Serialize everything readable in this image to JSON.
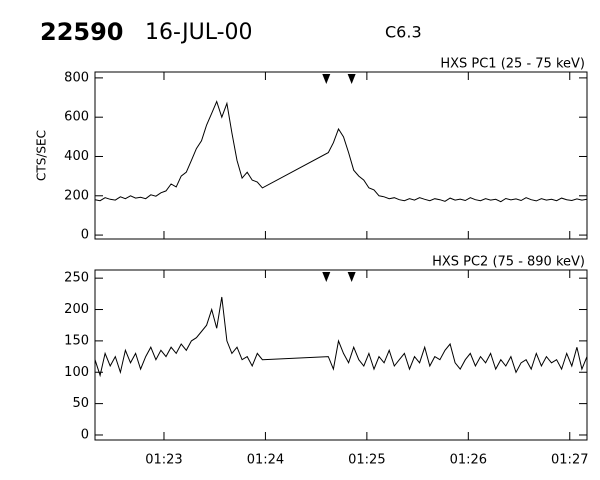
{
  "header": {
    "event": "22590",
    "date": "16-JUL-00",
    "class": "C6.3"
  },
  "chart_data": [
    {
      "type": "line",
      "title": "HXS PC1 (25 - 75 keV)",
      "y_label": "CTS/SEC",
      "color": "#000000",
      "x": [
        82.32,
        82.37,
        82.42,
        82.47,
        82.52,
        82.57,
        82.62,
        82.67,
        82.72,
        82.77,
        82.82,
        82.87,
        82.92,
        82.97,
        83.02,
        83.07,
        83.12,
        83.17,
        83.22,
        83.27,
        83.32,
        83.37,
        83.42,
        83.47,
        83.52,
        83.57,
        83.62,
        83.67,
        83.72,
        83.77,
        83.82,
        83.87,
        83.92,
        83.97,
        84.62,
        84.67,
        84.72,
        84.77,
        84.82,
        84.87,
        84.92,
        84.97,
        85.02,
        85.07,
        85.12,
        85.17,
        85.22,
        85.27,
        85.32,
        85.37,
        85.42,
        85.47,
        85.52,
        85.57,
        85.62,
        85.67,
        85.72,
        85.77,
        85.82,
        85.87,
        85.92,
        85.97,
        86.02,
        86.07,
        86.12,
        86.17,
        86.22,
        86.27,
        86.32,
        86.37,
        86.42,
        86.47,
        86.52,
        86.57,
        86.62,
        86.67,
        86.72,
        86.77,
        86.82,
        86.87,
        86.92,
        86.97,
        87.02,
        87.07,
        87.12,
        87.17
      ],
      "values": [
        180,
        175,
        190,
        182,
        178,
        195,
        185,
        200,
        188,
        192,
        185,
        205,
        198,
        215,
        225,
        260,
        245,
        300,
        320,
        380,
        440,
        480,
        560,
        620,
        680,
        600,
        670,
        520,
        380,
        290,
        320,
        280,
        270,
        240,
        420,
        470,
        540,
        500,
        420,
        330,
        300,
        280,
        240,
        230,
        200,
        195,
        185,
        190,
        180,
        175,
        185,
        178,
        190,
        182,
        175,
        185,
        180,
        172,
        188,
        178,
        183,
        176,
        190,
        180,
        175,
        185,
        178,
        182,
        170,
        186,
        179,
        184,
        176,
        190,
        180,
        174,
        185,
        178,
        182,
        175,
        188,
        180,
        176,
        184,
        178,
        182
      ],
      "xlim": [
        82.32,
        87.17
      ],
      "xticks": [
        83,
        84,
        85,
        86,
        87
      ],
      "ylim": [
        -20,
        830
      ],
      "yticks": [
        0,
        200,
        400,
        600,
        800
      ],
      "markers": [
        84.6,
        84.85
      ]
    },
    {
      "type": "line",
      "title": "HXS PC2 (75 - 890 keV)",
      "color": "#000000",
      "x": [
        82.32,
        82.37,
        82.42,
        82.47,
        82.52,
        82.57,
        82.62,
        82.67,
        82.72,
        82.77,
        82.82,
        82.87,
        82.92,
        82.97,
        83.02,
        83.07,
        83.12,
        83.17,
        83.22,
        83.27,
        83.32,
        83.37,
        83.42,
        83.47,
        83.52,
        83.57,
        83.62,
        83.67,
        83.72,
        83.77,
        83.82,
        83.87,
        83.92,
        83.97,
        84.62,
        84.67,
        84.72,
        84.77,
        84.82,
        84.87,
        84.92,
        84.97,
        85.02,
        85.07,
        85.12,
        85.17,
        85.22,
        85.27,
        85.32,
        85.37,
        85.42,
        85.47,
        85.52,
        85.57,
        85.62,
        85.67,
        85.72,
        85.77,
        85.82,
        85.87,
        85.92,
        85.97,
        86.02,
        86.07,
        86.12,
        86.17,
        86.22,
        86.27,
        86.32,
        86.37,
        86.42,
        86.47,
        86.52,
        86.57,
        86.62,
        86.67,
        86.72,
        86.77,
        86.82,
        86.87,
        86.92,
        86.97,
        87.02,
        87.07,
        87.12,
        87.17
      ],
      "values": [
        120,
        95,
        130,
        110,
        125,
        100,
        135,
        115,
        130,
        105,
        125,
        140,
        120,
        135,
        125,
        140,
        130,
        145,
        135,
        150,
        155,
        165,
        175,
        200,
        170,
        220,
        150,
        130,
        140,
        120,
        125,
        110,
        130,
        120,
        125,
        105,
        150,
        130,
        115,
        140,
        120,
        110,
        130,
        105,
        125,
        115,
        135,
        110,
        120,
        130,
        105,
        125,
        115,
        140,
        110,
        125,
        120,
        135,
        145,
        115,
        105,
        120,
        130,
        110,
        125,
        115,
        130,
        105,
        120,
        110,
        125,
        100,
        115,
        120,
        105,
        130,
        110,
        125,
        115,
        120,
        105,
        130,
        110,
        140,
        105,
        125
      ],
      "xlim": [
        82.32,
        87.17
      ],
      "xticks": [
        {
          "value": 83,
          "label": "01:23"
        },
        {
          "value": 84,
          "label": "01:24"
        },
        {
          "value": 85,
          "label": "01:25"
        },
        {
          "value": 86,
          "label": "01:26"
        },
        {
          "value": 87,
          "label": "01:27"
        }
      ],
      "ylim": [
        -8,
        263
      ],
      "yticks": [
        0,
        50,
        100,
        150,
        200,
        250
      ],
      "markers": [
        84.6,
        84.85
      ]
    }
  ]
}
